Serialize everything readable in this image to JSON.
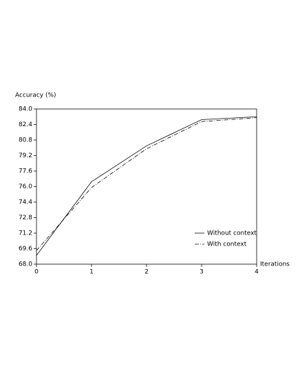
{
  "chart_data": {
    "type": "line",
    "ylabel": "Accuracy (%)",
    "xlabel": "Iterations",
    "x": [
      0,
      1,
      2,
      3,
      4
    ],
    "series": [
      {
        "name": "Without context",
        "color": "#000000",
        "linestyle": "solid",
        "values": [
          68.9,
          76.5,
          80.2,
          82.9,
          83.2
        ]
      },
      {
        "name": "With context",
        "color": "#000000",
        "linestyle": "dashdot",
        "values": [
          69.4,
          75.9,
          79.9,
          82.7,
          83.1
        ]
      }
    ],
    "xlim": [
      0,
      4
    ],
    "xticks": [
      0,
      1,
      2,
      3,
      4
    ],
    "ylim": [
      68,
      84
    ],
    "yticks": [
      {
        "value": 68,
        "label": "68.0"
      },
      69.6,
      71.2,
      72.8,
      74.4,
      {
        "value": 76,
        "label": "76.0"
      },
      77.6,
      79.2,
      80.8,
      82.4,
      {
        "value": 84,
        "label": "84.0"
      }
    ],
    "legend": "lower right"
  }
}
